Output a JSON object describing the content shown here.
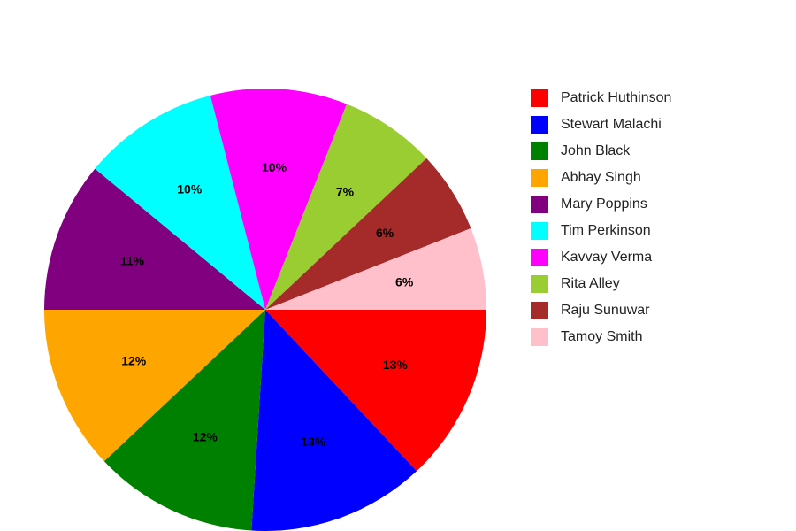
{
  "chart_data": {
    "type": "pie",
    "title": "",
    "legend_position": "right",
    "labels": [
      "Patrick Huthinson",
      "Stewart Malachi",
      "John Black",
      "Abhay Singh",
      "Mary Poppins",
      "Tim Perkinson",
      "Kavvay Verma",
      "Rita Alley",
      "Raju Sunuwar",
      "Tamoy Smith"
    ],
    "values": [
      13,
      13,
      12,
      12,
      11,
      10,
      10,
      7,
      6,
      6
    ],
    "value_labels": [
      "13%",
      "13%",
      "12%",
      "12%",
      "11%",
      "10%",
      "10%",
      "7%",
      "6%",
      "6%"
    ],
    "colors": [
      "#ff0000",
      "#0000ff",
      "#008000",
      "#ffa500",
      "#800080",
      "#00ffff",
      "#ff00ff",
      "#9acd32",
      "#a52a2a",
      "#ffc0cb"
    ]
  }
}
